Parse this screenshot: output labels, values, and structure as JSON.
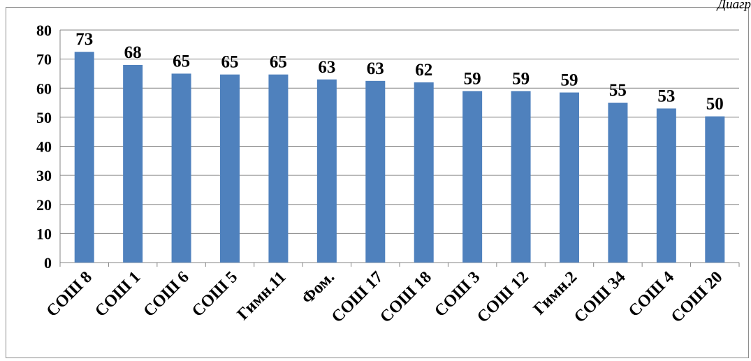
{
  "corner_text": "Диагр",
  "chart_data": {
    "type": "bar",
    "categories": [
      "СОШ 8",
      "СОШ 1",
      "СОШ 6",
      "СОШ 5",
      "Гимн.11",
      "Фом.",
      "СОШ 17",
      "СОШ 18",
      "СОШ 3",
      "СОШ 12",
      "Гимн.2",
      "СОШ 34",
      "СОШ 4",
      "СОШ 20"
    ],
    "values": [
      72.5,
      68,
      65,
      64.7,
      64.7,
      63,
      62.5,
      62,
      59,
      59,
      58.5,
      55,
      53,
      50.3
    ],
    "data_labels": [
      "73",
      "68",
      "65",
      "65",
      "65",
      "63",
      "63",
      "62",
      "59",
      "59",
      "59",
      "55",
      "53",
      "50"
    ],
    "y_ticks": [
      "0",
      "10",
      "20",
      "30",
      "40",
      "50",
      "60",
      "70",
      "80"
    ],
    "ylim": [
      0,
      80
    ],
    "grid": true,
    "legend": "none",
    "bar_color": "#4f81bd",
    "grid_color": "#868686"
  }
}
